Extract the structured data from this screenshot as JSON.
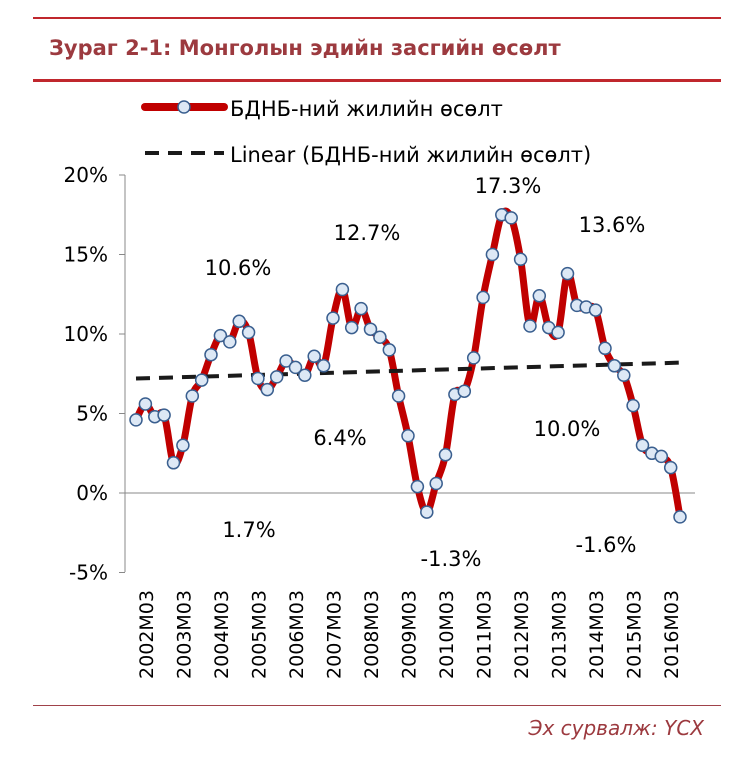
{
  "figure": {
    "title": "Зураг 2-1: Монголын эдийн засгийн өсөлт",
    "source": "Эх сурвалж: ҮСХ"
  },
  "colors": {
    "series": "#c00000",
    "marker_fill": "#dde8f5",
    "marker_stroke": "#3a5f8f",
    "trend": "#1a1a1a",
    "rule": "#c0272d",
    "title": "#9c3a3f"
  },
  "chart_data": {
    "type": "line",
    "title": "",
    "xlabel": "",
    "ylabel": "",
    "ylim": [
      -5,
      20
    ],
    "yticks": [
      "-5%",
      "0%",
      "5%",
      "10%",
      "15%",
      "20%"
    ],
    "ytick_values": [
      -5,
      0,
      5,
      10,
      15,
      20
    ],
    "xticks": [
      "2002M03",
      "2003M03",
      "2004M03",
      "2005M03",
      "2006M03",
      "2007M03",
      "2008M03",
      "2009M03",
      "2010M03",
      "2011M03",
      "2012M03",
      "2013M03",
      "2014M03",
      "2015M03",
      "2016M03"
    ],
    "grid": false,
    "legend": "top",
    "series": [
      {
        "name": "БДНБ-ний жилийн өсөлт",
        "values": [
          4.6,
          5.6,
          4.8,
          4.9,
          1.9,
          3.0,
          6.1,
          7.1,
          8.7,
          9.9,
          9.5,
          10.8,
          10.1,
          7.2,
          6.5,
          7.3,
          8.3,
          7.9,
          7.4,
          8.6,
          8.0,
          11.0,
          12.8,
          10.4,
          11.6,
          10.3,
          9.8,
          9.0,
          6.1,
          3.6,
          0.4,
          -1.2,
          0.6,
          2.4,
          6.2,
          6.4,
          8.5,
          12.3,
          15.0,
          17.5,
          17.3,
          14.7,
          10.5,
          12.4,
          10.4,
          10.1,
          13.8,
          11.8,
          11.7,
          11.5,
          9.1,
          8.0,
          7.4,
          5.5,
          3.0,
          2.5,
          2.3,
          1.6,
          -1.5
        ]
      },
      {
        "name": "Linear (БДНБ-ний жилийн өсөлт)",
        "values": [
          7.2,
          8.2
        ]
      }
    ],
    "annotations": [
      "10.6%",
      "12.7%",
      "17.3%",
      "13.6%",
      "6.4%",
      "10.0%",
      "1.7%",
      "-1.3%",
      "-1.6%"
    ]
  }
}
